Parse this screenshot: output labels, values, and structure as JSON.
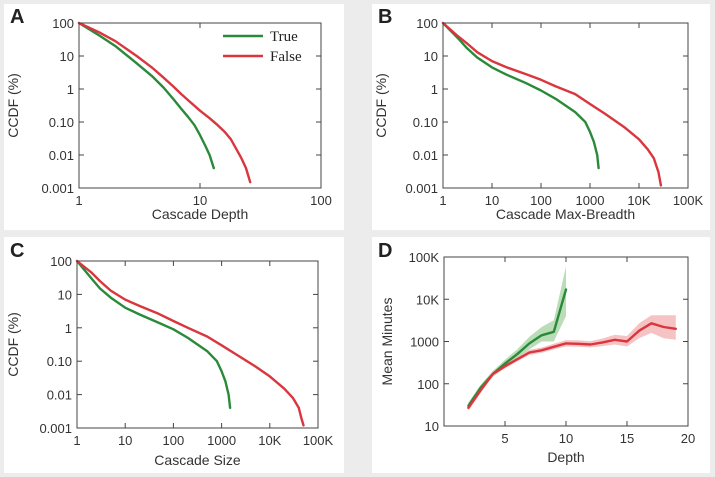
{
  "colors": {
    "true": "#2a8a3a",
    "false": "#d9363e",
    "true_band": "#9ccf9a",
    "false_band": "#f2a9ad"
  },
  "panels": {
    "A": {
      "label": "A"
    },
    "B": {
      "label": "B"
    },
    "C": {
      "label": "C"
    },
    "D": {
      "label": "D"
    }
  },
  "legend": {
    "true_label": "True",
    "false_label": "False",
    "placement": "top-right of panel A"
  },
  "chart_data": [
    {
      "id": "A",
      "type": "line",
      "xlabel": "Cascade Depth",
      "ylabel": "CCDF (%)",
      "xscale": "log",
      "yscale": "log",
      "xlim": [
        1,
        100
      ],
      "ylim": [
        0.001,
        100
      ],
      "xticks": [
        {
          "v": 1,
          "t": "1"
        },
        {
          "v": 10,
          "t": "10"
        },
        {
          "v": 100,
          "t": "100"
        }
      ],
      "yticks": [
        {
          "v": 0.001,
          "t": "0.001"
        },
        {
          "v": 0.01,
          "t": "0.01"
        },
        {
          "v": 0.1,
          "t": "0.10"
        },
        {
          "v": 1,
          "t": "1"
        },
        {
          "v": 10,
          "t": "10"
        },
        {
          "v": 100,
          "t": "100"
        }
      ],
      "series": [
        {
          "name": "True",
          "key": "true",
          "x": [
            1,
            1.5,
            2,
            3,
            4,
            5,
            6,
            7,
            8,
            9,
            10,
            11,
            12,
            13
          ],
          "y": [
            100,
            40,
            20,
            6,
            2.5,
            1.1,
            0.5,
            0.25,
            0.14,
            0.08,
            0.04,
            0.02,
            0.01,
            0.004
          ]
        },
        {
          "name": "False",
          "key": "false",
          "x": [
            1,
            1.5,
            2,
            3,
            4,
            5,
            6,
            7,
            8,
            10,
            12,
            14,
            16,
            18,
            20,
            22,
            24,
            26
          ],
          "y": [
            100,
            50,
            28,
            10,
            4.5,
            2.2,
            1.2,
            0.7,
            0.45,
            0.22,
            0.13,
            0.08,
            0.05,
            0.03,
            0.015,
            0.008,
            0.004,
            0.0015
          ]
        }
      ]
    },
    {
      "id": "B",
      "type": "line",
      "xlabel": "Cascade Max-Breadth",
      "ylabel": "CCDF (%)",
      "xscale": "log",
      "yscale": "log",
      "xlim": [
        1,
        100000
      ],
      "ylim": [
        0.001,
        100
      ],
      "xticks": [
        {
          "v": 1,
          "t": "1"
        },
        {
          "v": 10,
          "t": "10"
        },
        {
          "v": 100,
          "t": "100"
        },
        {
          "v": 1000,
          "t": "1000"
        },
        {
          "v": 10000,
          "t": "10K"
        },
        {
          "v": 100000,
          "t": "100K"
        }
      ],
      "yticks": [
        {
          "v": 0.001,
          "t": "0.001"
        },
        {
          "v": 0.01,
          "t": "0.01"
        },
        {
          "v": 0.1,
          "t": "0.10"
        },
        {
          "v": 1,
          "t": "1"
        },
        {
          "v": 10,
          "t": "10"
        },
        {
          "v": 100,
          "t": "100"
        }
      ],
      "series": [
        {
          "name": "True",
          "key": "true",
          "x": [
            1,
            2,
            3,
            5,
            10,
            20,
            50,
            100,
            200,
            500,
            800,
            1000,
            1200,
            1400,
            1500
          ],
          "y": [
            100,
            35,
            18,
            9,
            4.5,
            2.7,
            1.5,
            0.9,
            0.5,
            0.2,
            0.1,
            0.05,
            0.025,
            0.01,
            0.004
          ]
        },
        {
          "name": "False",
          "key": "false",
          "x": [
            1,
            2,
            3,
            5,
            10,
            20,
            50,
            100,
            200,
            500,
            1000,
            2000,
            5000,
            10000,
            15000,
            20000,
            25000,
            28000
          ],
          "y": [
            100,
            40,
            25,
            13,
            7,
            4.5,
            2.8,
            1.9,
            1.2,
            0.7,
            0.35,
            0.18,
            0.07,
            0.03,
            0.015,
            0.008,
            0.003,
            0.0012
          ]
        }
      ]
    },
    {
      "id": "C",
      "type": "line",
      "xlabel": "Cascade Size",
      "ylabel": "CCDF (%)",
      "xscale": "log",
      "yscale": "log",
      "xlim": [
        1,
        100000
      ],
      "ylim": [
        0.001,
        100
      ],
      "xticks": [
        {
          "v": 1,
          "t": "1"
        },
        {
          "v": 10,
          "t": "10"
        },
        {
          "v": 100,
          "t": "100"
        },
        {
          "v": 1000,
          "t": "1000"
        },
        {
          "v": 10000,
          "t": "10K"
        },
        {
          "v": 100000,
          "t": "100K"
        }
      ],
      "yticks": [
        {
          "v": 0.001,
          "t": "0.001"
        },
        {
          "v": 0.01,
          "t": "0.01"
        },
        {
          "v": 0.1,
          "t": "0.10"
        },
        {
          "v": 1,
          "t": "1"
        },
        {
          "v": 10,
          "t": "10"
        },
        {
          "v": 100,
          "t": "100"
        }
      ],
      "series": [
        {
          "name": "True",
          "key": "true",
          "x": [
            1,
            2,
            3,
            5,
            10,
            20,
            50,
            100,
            200,
            500,
            800,
            1000,
            1200,
            1400,
            1500
          ],
          "y": [
            100,
            30,
            15,
            8,
            4,
            2.5,
            1.4,
            0.9,
            0.5,
            0.2,
            0.1,
            0.05,
            0.025,
            0.01,
            0.004
          ]
        },
        {
          "name": "False",
          "key": "false",
          "x": [
            1,
            2,
            3,
            5,
            10,
            20,
            50,
            100,
            200,
            500,
            1000,
            2000,
            5000,
            10000,
            20000,
            30000,
            40000,
            45000,
            50000
          ],
          "y": [
            100,
            45,
            25,
            13,
            7,
            4.5,
            2.6,
            1.6,
            1,
            0.55,
            0.3,
            0.16,
            0.07,
            0.035,
            0.015,
            0.008,
            0.004,
            0.002,
            0.0012
          ]
        }
      ]
    },
    {
      "id": "D",
      "type": "line",
      "xlabel": "Depth",
      "ylabel": "Mean Minutes",
      "xscale": "linear",
      "yscale": "log",
      "xlim": [
        0,
        20
      ],
      "ylim": [
        10,
        100000
      ],
      "xticks": [
        {
          "v": 5,
          "t": "5"
        },
        {
          "v": 10,
          "t": "10"
        },
        {
          "v": 15,
          "t": "15"
        },
        {
          "v": 20,
          "t": "20"
        }
      ],
      "yticks": [
        {
          "v": 10,
          "t": "10"
        },
        {
          "v": 100,
          "t": "100"
        },
        {
          "v": 1000,
          "t": "1000"
        },
        {
          "v": 10000,
          "t": "10K"
        },
        {
          "v": 100000,
          "t": "100K"
        }
      ],
      "series": [
        {
          "name": "True",
          "key": "true",
          "x": [
            2,
            3,
            4,
            5,
            6,
            7,
            8,
            9,
            10
          ],
          "y": [
            30,
            80,
            170,
            300,
            500,
            900,
            1400,
            1700,
            17000
          ],
          "lo": [
            25,
            68,
            145,
            250,
            400,
            650,
            1000,
            1000,
            4000
          ],
          "hi": [
            36,
            95,
            200,
            370,
            650,
            1300,
            2200,
            3200,
            60000
          ]
        },
        {
          "name": "False",
          "key": "false",
          "x": [
            2,
            3,
            4,
            5,
            6,
            7,
            8,
            9,
            10,
            11,
            12,
            13,
            14,
            15,
            16,
            17,
            18,
            19
          ],
          "y": [
            27,
            70,
            170,
            260,
            380,
            550,
            620,
            750,
            900,
            880,
            850,
            950,
            1100,
            1000,
            1800,
            2700,
            2200,
            2000
          ],
          "lo": [
            23,
            60,
            150,
            230,
            340,
            480,
            540,
            650,
            760,
            750,
            720,
            780,
            850,
            760,
            1200,
            1600,
            1200,
            1100
          ],
          "hi": [
            32,
            82,
            190,
            290,
            430,
            640,
            720,
            880,
            1080,
            1060,
            1020,
            1180,
            1450,
            1350,
            2700,
            4200,
            4200,
            4200
          ]
        }
      ]
    }
  ]
}
